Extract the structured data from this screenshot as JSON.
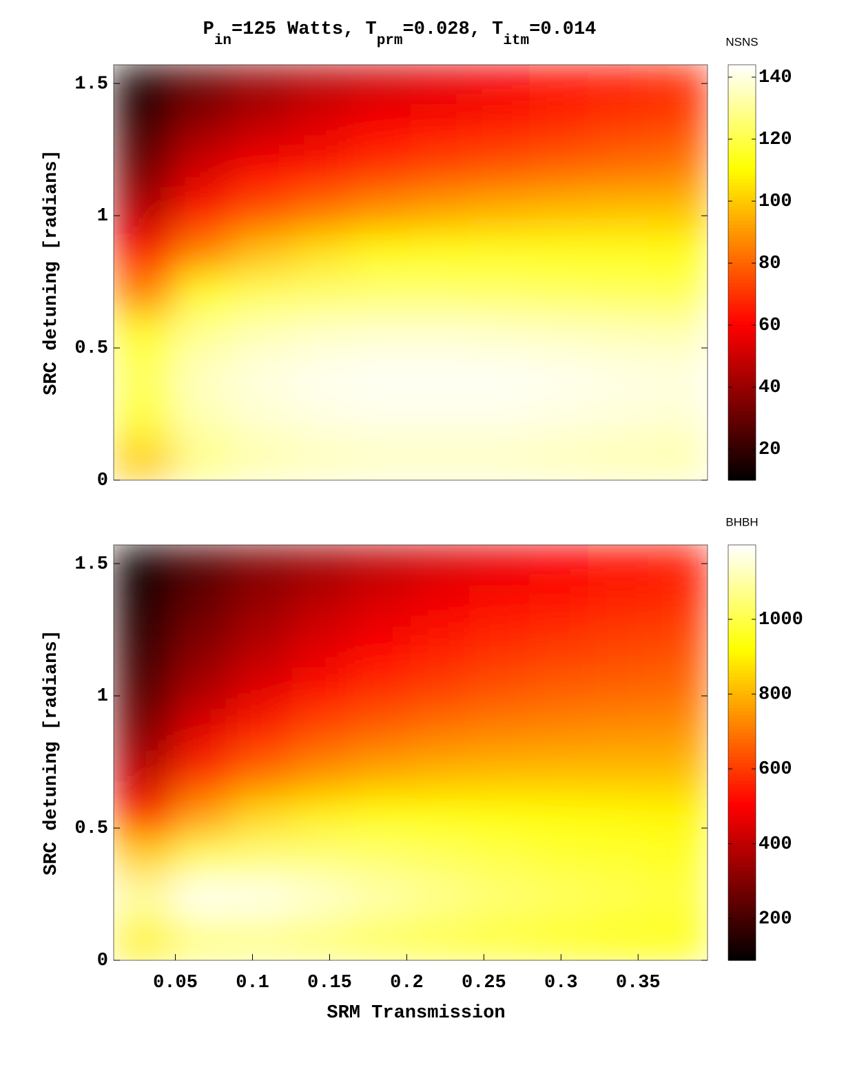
{
  "chart_data": [
    {
      "type": "heatmap",
      "title_parts": [
        {
          "text": "P"
        },
        {
          "text": "in",
          "sub": true
        },
        {
          "text": "=125 Watts, T"
        },
        {
          "text": "prm",
          "sub": true
        },
        {
          "text": "=0.028, T"
        },
        {
          "text": "itm",
          "sub": true
        },
        {
          "text": "=0.014"
        }
      ],
      "ylabel": "SRC detuning [radians]",
      "colorbar_label": "NSNS",
      "colormap": "hot",
      "x": [
        0.029,
        0.068,
        0.106,
        0.145,
        0.183,
        0.222,
        0.26,
        0.299,
        0.337,
        0.376
      ],
      "y": [
        0.079,
        0.236,
        0.393,
        0.55,
        0.707,
        0.864,
        1.021,
        1.178,
        1.335,
        1.492
      ],
      "values": [
        [
          100,
          128,
          133,
          135,
          136,
          136,
          136,
          135,
          134,
          133
        ],
        [
          118,
          134,
          138,
          140,
          141,
          141,
          141,
          140,
          139,
          138
        ],
        [
          122,
          136,
          140,
          142,
          143,
          143,
          143,
          142,
          141,
          140
        ],
        [
          115,
          130,
          135,
          137,
          138,
          138,
          137,
          136,
          135,
          134
        ],
        [
          85,
          115,
          122,
          124,
          125,
          125,
          124,
          123,
          122,
          121
        ],
        [
          60,
          85,
          98,
          105,
          110,
          112,
          113,
          113,
          113,
          112
        ],
        [
          45,
          65,
          75,
          82,
          88,
          92,
          95,
          97,
          98,
          98
        ],
        [
          32,
          52,
          60,
          65,
          70,
          74,
          77,
          80,
          82,
          84
        ],
        [
          22,
          40,
          48,
          55,
          60,
          63,
          66,
          69,
          72,
          74
        ],
        [
          14,
          30,
          40,
          46,
          51,
          55,
          58,
          62,
          65,
          68
        ]
      ],
      "xlim": [
        0.01,
        0.395
      ],
      "ylim": [
        0,
        1.5708
      ],
      "yticks": [
        0,
        0.5,
        1,
        1.5
      ],
      "zlim": [
        10,
        144
      ],
      "zticks": [
        20,
        40,
        60,
        80,
        100,
        120,
        140
      ]
    },
    {
      "type": "heatmap",
      "ylabel": "SRC detuning [radians]",
      "xlabel": "SRM Transmission",
      "colorbar_label": "BHBH",
      "colormap": "hot",
      "x": [
        0.029,
        0.068,
        0.106,
        0.145,
        0.183,
        0.222,
        0.26,
        0.299,
        0.337,
        0.376
      ],
      "y": [
        0.079,
        0.236,
        0.393,
        0.55,
        0.707,
        0.864,
        1.021,
        1.178,
        1.335,
        1.492
      ],
      "values": [
        [
          900,
          1050,
          1060,
          1040,
          1010,
          990,
          970,
          950,
          940,
          930
        ],
        [
          1100,
          1190,
          1180,
          1150,
          1110,
          1080,
          1050,
          1030,
          1010,
          990
        ],
        [
          850,
          1020,
          1050,
          1050,
          1040,
          1020,
          1000,
          980,
          970,
          960
        ],
        [
          550,
          760,
          860,
          900,
          920,
          925,
          925,
          920,
          915,
          910
        ],
        [
          400,
          580,
          680,
          740,
          780,
          800,
          810,
          815,
          815,
          815
        ],
        [
          300,
          460,
          560,
          630,
          670,
          700,
          720,
          730,
          740,
          745
        ],
        [
          230,
          370,
          460,
          530,
          580,
          610,
          640,
          660,
          670,
          680
        ],
        [
          180,
          310,
          390,
          460,
          510,
          550,
          580,
          600,
          615,
          630
        ],
        [
          140,
          260,
          340,
          400,
          450,
          490,
          520,
          545,
          565,
          580
        ],
        [
          110,
          220,
          300,
          350,
          400,
          440,
          470,
          500,
          520,
          540
        ]
      ],
      "xlim": [
        0.01,
        0.395
      ],
      "ylim": [
        0,
        1.5708
      ],
      "xticks": [
        0.05,
        0.1,
        0.15,
        0.2,
        0.25,
        0.3,
        0.35
      ],
      "yticks": [
        0,
        0.5,
        1,
        1.5
      ],
      "zlim": [
        88,
        1199
      ],
      "zticks": [
        200,
        400,
        600,
        800,
        1000
      ]
    }
  ]
}
